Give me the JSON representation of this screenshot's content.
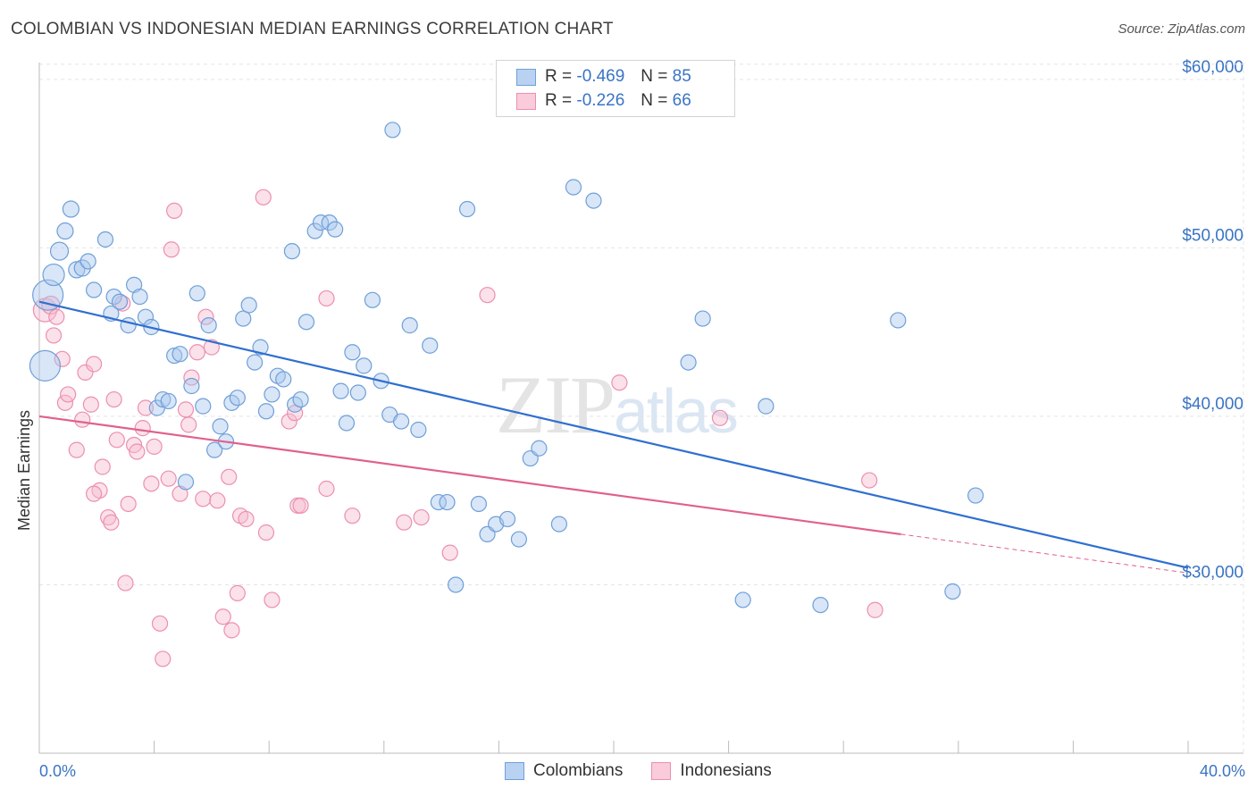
{
  "title": "COLOMBIAN VS INDONESIAN MEDIAN EARNINGS CORRELATION CHART",
  "source": "Source: ZipAtlas.com",
  "watermark": {
    "zip": "ZIP",
    "atlas": "atlas"
  },
  "legend": {
    "r_label": "R =",
    "n_label": "N =",
    "rows": [
      {
        "r": "-0.469",
        "n": "85"
      },
      {
        "r": "-0.226",
        "n": "66"
      }
    ]
  },
  "colors": {
    "colombians_fill": "#a9c7ee",
    "colombians_stroke": "#6f9fd8",
    "colombians_line": "#2f6fd0",
    "indonesians_fill": "#f6bdd0",
    "indonesians_stroke": "#ec8fb0",
    "indonesians_line": "#e0608c",
    "axis_text": "#3a74c4",
    "grid": "#e4e4e4"
  },
  "chart_data": {
    "type": "scatter",
    "xlabel": "",
    "ylabel": "Median Earnings",
    "xlim": [
      0,
      40
    ],
    "ylim": [
      20000,
      61000
    ],
    "x_tick_labels": [
      "0.0%",
      "40.0%"
    ],
    "y_ticks": [
      30000,
      40000,
      50000,
      60000
    ],
    "y_tick_labels": [
      "$30,000",
      "$40,000",
      "$50,000",
      "$60,000"
    ],
    "grid": true,
    "legend_position": "top-center",
    "series": [
      {
        "name": "Colombians",
        "points": [
          [
            0.3,
            47200
          ],
          [
            0.5,
            48400
          ],
          [
            0.7,
            49800
          ],
          [
            0.9,
            51000
          ],
          [
            1.1,
            52300
          ],
          [
            1.3,
            48700
          ],
          [
            1.5,
            48800
          ],
          [
            1.7,
            49200
          ],
          [
            1.9,
            47500
          ],
          [
            2.3,
            50500
          ],
          [
            2.5,
            46100
          ],
          [
            2.6,
            47100
          ],
          [
            2.8,
            46800
          ],
          [
            3.1,
            45400
          ],
          [
            3.3,
            47800
          ],
          [
            3.5,
            47100
          ],
          [
            3.7,
            45900
          ],
          [
            3.9,
            45300
          ],
          [
            4.1,
            40500
          ],
          [
            4.3,
            41000
          ],
          [
            4.5,
            40900
          ],
          [
            4.7,
            43600
          ],
          [
            4.9,
            43700
          ],
          [
            5.1,
            36100
          ],
          [
            5.3,
            41800
          ],
          [
            5.5,
            47300
          ],
          [
            5.7,
            40600
          ],
          [
            5.9,
            45400
          ],
          [
            6.1,
            38000
          ],
          [
            6.3,
            39400
          ],
          [
            6.5,
            38500
          ],
          [
            6.7,
            40800
          ],
          [
            6.9,
            41100
          ],
          [
            7.1,
            45800
          ],
          [
            7.3,
            46600
          ],
          [
            7.5,
            43200
          ],
          [
            7.7,
            44100
          ],
          [
            7.9,
            40300
          ],
          [
            8.1,
            41300
          ],
          [
            8.3,
            42400
          ],
          [
            8.5,
            42200
          ],
          [
            8.8,
            49800
          ],
          [
            8.9,
            40700
          ],
          [
            9.1,
            41000
          ],
          [
            9.3,
            45600
          ],
          [
            9.6,
            51000
          ],
          [
            9.8,
            51500
          ],
          [
            10.1,
            51500
          ],
          [
            10.3,
            51100
          ],
          [
            10.5,
            41500
          ],
          [
            10.7,
            39600
          ],
          [
            10.9,
            43800
          ],
          [
            11.1,
            41400
          ],
          [
            11.3,
            43000
          ],
          [
            11.6,
            46900
          ],
          [
            11.9,
            42100
          ],
          [
            12.2,
            40100
          ],
          [
            12.6,
            39700
          ],
          [
            12.9,
            45400
          ],
          [
            13.2,
            39200
          ],
          [
            13.6,
            44200
          ],
          [
            13.9,
            34900
          ],
          [
            14.2,
            34900
          ],
          [
            14.5,
            30000
          ],
          [
            14.9,
            52300
          ],
          [
            15.3,
            34800
          ],
          [
            15.6,
            33000
          ],
          [
            15.9,
            33600
          ],
          [
            16.3,
            33900
          ],
          [
            16.7,
            32700
          ],
          [
            17.1,
            37500
          ],
          [
            17.4,
            38100
          ],
          [
            18.1,
            33600
          ],
          [
            18.6,
            53600
          ],
          [
            19.3,
            52800
          ],
          [
            22.6,
            43200
          ],
          [
            23.1,
            45800
          ],
          [
            24.5,
            29100
          ],
          [
            25.3,
            40600
          ],
          [
            27.2,
            28800
          ],
          [
            29.9,
            45700
          ],
          [
            31.8,
            29600
          ],
          [
            32.6,
            35300
          ],
          [
            12.3,
            57000
          ],
          [
            0.2,
            43000
          ]
        ],
        "sizes": [
          34,
          24,
          20,
          18,
          18,
          18,
          18,
          17,
          17,
          17,
          17,
          17,
          17,
          17,
          17,
          17,
          17,
          17,
          17,
          17,
          17,
          17,
          17,
          17,
          17,
          17,
          17,
          17,
          17,
          17,
          17,
          17,
          17,
          17,
          17,
          17,
          17,
          17,
          17,
          17,
          17,
          17,
          17,
          17,
          17,
          17,
          17,
          17,
          17,
          17,
          17,
          17,
          17,
          17,
          17,
          17,
          17,
          17,
          17,
          17,
          17,
          17,
          17,
          17,
          17,
          17,
          17,
          17,
          17,
          17,
          17,
          17,
          17,
          17,
          17,
          17,
          17,
          17,
          17,
          17,
          17,
          17,
          17,
          17,
          34
        ],
        "trend": {
          "x": [
            0,
            40
          ],
          "y": [
            46800,
            31000
          ]
        }
      },
      {
        "name": "Indonesians",
        "points": [
          [
            0.2,
            46300
          ],
          [
            0.4,
            46600
          ],
          [
            0.5,
            44800
          ],
          [
            0.6,
            45900
          ],
          [
            0.8,
            43400
          ],
          [
            0.9,
            40800
          ],
          [
            1.0,
            41300
          ],
          [
            1.3,
            38000
          ],
          [
            1.5,
            39800
          ],
          [
            1.6,
            42600
          ],
          [
            1.8,
            40700
          ],
          [
            1.9,
            43100
          ],
          [
            2.1,
            35600
          ],
          [
            2.2,
            37000
          ],
          [
            2.4,
            34000
          ],
          [
            2.5,
            33700
          ],
          [
            2.6,
            41000
          ],
          [
            2.7,
            38600
          ],
          [
            2.9,
            46700
          ],
          [
            3.0,
            30100
          ],
          [
            3.1,
            34800
          ],
          [
            3.3,
            38300
          ],
          [
            3.4,
            37900
          ],
          [
            3.6,
            39300
          ],
          [
            3.7,
            40500
          ],
          [
            3.9,
            36000
          ],
          [
            4.0,
            38200
          ],
          [
            4.2,
            27700
          ],
          [
            4.3,
            25600
          ],
          [
            4.5,
            36300
          ],
          [
            4.6,
            49900
          ],
          [
            4.7,
            52200
          ],
          [
            4.9,
            35400
          ],
          [
            5.1,
            40400
          ],
          [
            5.2,
            39500
          ],
          [
            5.3,
            42300
          ],
          [
            5.5,
            43800
          ],
          [
            5.7,
            35100
          ],
          [
            5.8,
            45900
          ],
          [
            6.0,
            44100
          ],
          [
            6.2,
            35000
          ],
          [
            6.4,
            28100
          ],
          [
            6.6,
            36400
          ],
          [
            6.7,
            27300
          ],
          [
            6.9,
            29500
          ],
          [
            7.0,
            34100
          ],
          [
            7.2,
            33900
          ],
          [
            7.9,
            33100
          ],
          [
            8.1,
            29100
          ],
          [
            7.8,
            53000
          ],
          [
            8.7,
            39700
          ],
          [
            8.9,
            40200
          ],
          [
            9.0,
            34700
          ],
          [
            9.1,
            34700
          ],
          [
            10.0,
            47000
          ],
          [
            10.0,
            35700
          ],
          [
            10.9,
            34100
          ],
          [
            12.7,
            33700
          ],
          [
            13.3,
            34000
          ],
          [
            14.3,
            31900
          ],
          [
            15.6,
            47200
          ],
          [
            20.2,
            42000
          ],
          [
            23.7,
            39900
          ],
          [
            28.9,
            36200
          ],
          [
            29.1,
            28500
          ],
          [
            1.9,
            35400
          ]
        ],
        "sizes": [
          26,
          20,
          17,
          17,
          17,
          17,
          17,
          17,
          17,
          17,
          17,
          17,
          17,
          17,
          17,
          17,
          17,
          17,
          17,
          17,
          17,
          17,
          17,
          17,
          17,
          17,
          17,
          17,
          17,
          17,
          17,
          17,
          17,
          17,
          17,
          17,
          17,
          17,
          17,
          17,
          17,
          17,
          17,
          17,
          17,
          17,
          17,
          17,
          17,
          17,
          17,
          17,
          17,
          17,
          17,
          17,
          17,
          17,
          17,
          17,
          17,
          17,
          17,
          17,
          17,
          17
        ],
        "trend": {
          "x": [
            0,
            30
          ],
          "y": [
            40000,
            33000
          ]
        },
        "trend_extension": {
          "x": [
            30,
            40
          ],
          "y": [
            33000,
            30700
          ]
        }
      }
    ]
  }
}
